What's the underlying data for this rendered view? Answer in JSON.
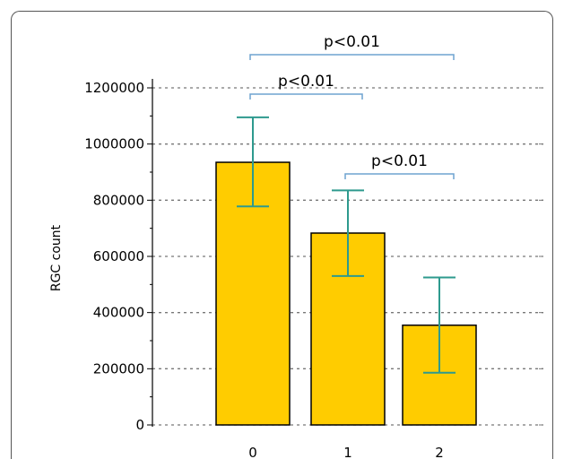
{
  "chart_data": {
    "type": "bar",
    "title": "",
    "xlabel": "",
    "ylabel": "RGC count",
    "categories": [
      "0",
      "1",
      "2"
    ],
    "values": [
      935000,
      683000,
      355000
    ],
    "error_upper": [
      1095000,
      835000,
      525000
    ],
    "error_lower": [
      778000,
      530000,
      186000
    ],
    "ylim": [
      0,
      1200000
    ],
    "yticks": [
      "0",
      "200000",
      "400000",
      "600000",
      "800000",
      "1000000",
      "1200000"
    ],
    "ytick_values": [
      0,
      200000,
      400000,
      600000,
      800000,
      1000000,
      1200000
    ],
    "grid": true,
    "significance": [
      {
        "label": "p<0.01",
        "from": 0,
        "to": 2
      },
      {
        "label": "p<0.01",
        "from": 0,
        "to": 1
      },
      {
        "label": "p<0.01",
        "from": 1,
        "to": 2
      }
    ],
    "colors": {
      "bar_fill": "#FFCC00",
      "bar_stroke": "#000000",
      "error_bar": "#2E9A8E",
      "bracket": "#6EA3D0",
      "grid": "#777777"
    }
  }
}
